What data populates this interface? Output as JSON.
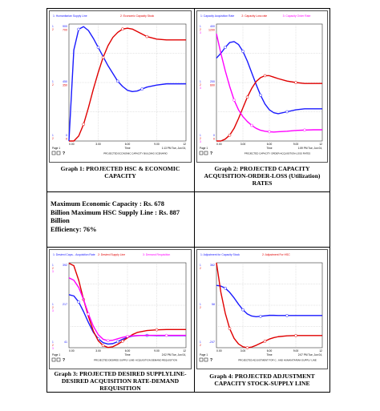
{
  "charts": [
    {
      "id": "g1",
      "caption": "Graph 1: PROJECTED HSC & ECONOMIC CAPACITY",
      "legend": [
        {
          "num": "1",
          "label": "1: Humanitarian Supply Line",
          "color": "#1a1aff"
        },
        {
          "num": "2",
          "label": "2: Economic Capacity Stock",
          "color": "#e00000"
        }
      ],
      "axis_left": [
        {
          "l1": "900",
          "l2": "700",
          "pos": "top"
        },
        {
          "l1": "450",
          "l2": "350",
          "pos": "mid"
        },
        {
          "l1": "0",
          "l2": "0",
          "pos": "bot"
        }
      ],
      "xticks": [
        "0.00",
        "3.00",
        "6.00",
        "9.00",
        "12"
      ],
      "footer": {
        "page": "Page 1",
        "time": "Time",
        "clock": "1:13 PM  Tue, Jun 04,",
        "scenario": "PROJECTED ECONOMIC CAPACITY BUILDING SCENARIO"
      },
      "chart_data": {
        "type": "line",
        "xlim": [
          0,
          12
        ],
        "series": [
          {
            "name": "1: Humanitarian Supply Line",
            "color": "#1a1aff",
            "ylim": [
              0,
              900
            ],
            "x": [
              0,
              0.5,
              1,
              1.5,
              2,
              2.5,
              3,
              3.5,
              4,
              4.5,
              5,
              5.5,
              6,
              6.5,
              7,
              7.5,
              8,
              9,
              10,
              11,
              12
            ],
            "y": [
              0,
              700,
              860,
              880,
              850,
              790,
              720,
              650,
              580,
              520,
              460,
              420,
              390,
              380,
              385,
              400,
              415,
              430,
              440,
              440,
              440
            ]
          },
          {
            "name": "2: Economic Capacity Stock",
            "color": "#e00000",
            "ylim": [
              0,
              700
            ],
            "x": [
              0,
              0.5,
              1,
              1.5,
              2,
              2.5,
              3,
              3.5,
              4,
              4.5,
              5,
              5.5,
              6,
              6.5,
              7,
              7.5,
              8,
              9,
              10,
              11,
              12
            ],
            "y": [
              0,
              0,
              30,
              100,
              200,
              310,
              410,
              500,
              570,
              620,
              650,
              670,
              675,
              670,
              655,
              640,
              625,
              610,
              605,
              605,
              605
            ]
          }
        ]
      }
    },
    {
      "id": "g2",
      "caption": "Graph 2: PROJECTED CAPACITY ACQUISITION-ORDER-LOSS (Utilization) RATES",
      "legend": [
        {
          "num": "1",
          "label": "1: Capacity Acquisition Rate",
          "color": "#1a1aff"
        },
        {
          "num": "2",
          "label": "2: Capacity Loss rate",
          "color": "#e00000"
        },
        {
          "num": "3",
          "label": "3: Capacity Order Rate",
          "color": "#ff00ff"
        }
      ],
      "axis_left": [
        {
          "l1": "400",
          "l2": "1200",
          "pos": "top"
        },
        {
          "l1": "200",
          "l2": "600",
          "pos": "mid"
        },
        {
          "l1": "0",
          "l2": "0",
          "pos": "bot"
        }
      ],
      "xticks": [
        "0.00",
        "3.00",
        "6.00",
        "9.00",
        "12"
      ],
      "footer": {
        "page": "Page 1",
        "time": "Time",
        "clock": "1:59 PM  Tue, Jun 04,",
        "scenario": "PROJECTED CAPACITY ORDER-ACQUISITION-LOSS RATES"
      },
      "chart_data": {
        "type": "line",
        "xlim": [
          0,
          12
        ],
        "series": [
          {
            "name": "1: Capacity Acquisition Rate",
            "color": "#1a1aff",
            "ylim": [
              0,
              1200
            ],
            "x": [
              0,
              0.5,
              1,
              1.5,
              2,
              2.5,
              3,
              3.5,
              4,
              4.5,
              5,
              5.5,
              6,
              6.5,
              7,
              8,
              9,
              10,
              11,
              12
            ],
            "y": [
              850,
              900,
              960,
              1010,
              1020,
              990,
              920,
              820,
              700,
              580,
              470,
              380,
              320,
              290,
              280,
              300,
              320,
              330,
              330,
              330
            ]
          },
          {
            "name": "2: Capacity Loss rate",
            "color": "#e00000",
            "ylim": [
              0,
              1200
            ],
            "x": [
              0,
              0.5,
              1,
              1.5,
              2,
              2.5,
              3,
              3.5,
              4,
              4.5,
              5,
              5.5,
              6,
              6.5,
              7,
              8,
              9,
              10,
              11,
              12
            ],
            "y": [
              0,
              0,
              20,
              60,
              130,
              230,
              340,
              450,
              540,
              610,
              650,
              670,
              670,
              655,
              640,
              615,
              600,
              590,
              590,
              590
            ]
          },
          {
            "name": "3: Capacity Order Rate",
            "color": "#ff00ff",
            "ylim": [
              0,
              1200
            ],
            "x": [
              0,
              0.5,
              1,
              1.5,
              2,
              2.5,
              3,
              3.5,
              4,
              4.5,
              5,
              5.5,
              6,
              6.5,
              7,
              8,
              9,
              10,
              11,
              12
            ],
            "y": [
              1100,
              900,
              720,
              560,
              420,
              320,
              250,
              200,
              160,
              130,
              110,
              100,
              95,
              92,
              95,
              100,
              108,
              112,
              115,
              115
            ]
          }
        ]
      }
    },
    {
      "id": "g3",
      "caption": "Graph 3: PROJECTED DESIRED SUPPLYLINE-DESIRED ACQUISITION RATE-DEMAND REQUISITION",
      "legend": [
        {
          "num": "1",
          "label": "1: Desired Capa... Acquisition Rate",
          "color": "#1a1aff"
        },
        {
          "num": "2",
          "label": "2: Desired Supply Line",
          "color": "#e00000"
        },
        {
          "num": "3",
          "label": "3: Demand Requisition",
          "color": "#ff00ff"
        }
      ],
      "axis_left": [
        {
          "l1": "392",
          "l2": "",
          "pos": "top"
        },
        {
          "l1": "217",
          "l2": "",
          "pos": "mid"
        },
        {
          "l1": "41",
          "l2": "",
          "pos": "bot"
        }
      ],
      "xticks": [
        "0.00",
        "3.00",
        "6.00",
        "9.00",
        "12"
      ],
      "footer": {
        "page": "Page 1",
        "time": "Time",
        "clock": "2:02 PM  Tue, Jun 04,",
        "scenario": "PROJECTED DESIRED SUPPLY LINE- ACQUISITION-DEMAND REQUISITION"
      },
      "chart_data": {
        "type": "line",
        "xlim": [
          0,
          12
        ],
        "series": [
          {
            "name": "1: Desired Capa... Acquisition Rate",
            "color": "#1a1aff",
            "ylim": [
              41,
              392
            ],
            "x": [
              0,
              0.5,
              1,
              1.5,
              2,
              2.5,
              3,
              3.5,
              4,
              4.5,
              5,
              5.5,
              6,
              6.5,
              7,
              8,
              9,
              10,
              11,
              12
            ],
            "y": [
              260,
              255,
              230,
              190,
              145,
              105,
              78,
              62,
              56,
              58,
              66,
              76,
              84,
              89,
              91,
              92,
              91,
              91,
              91,
              91
            ]
          },
          {
            "name": "2: Desired Supply Line",
            "color": "#e00000",
            "ylim": [
              41,
              392
            ],
            "x": [
              0,
              0.5,
              1,
              1.5,
              2,
              2.5,
              3,
              3.5,
              4,
              4.5,
              5,
              5.5,
              6,
              6.5,
              7,
              8,
              9,
              10,
              11,
              12
            ],
            "y": [
              390,
              380,
              320,
              240,
              170,
              110,
              70,
              50,
              42,
              45,
              55,
              68,
              82,
              95,
              104,
              112,
              115,
              116,
              116,
              116
            ]
          },
          {
            "name": "3: Demand Requisition",
            "color": "#ff00ff",
            "ylim": [
              41,
              392
            ],
            "x": [
              0,
              0.5,
              1,
              1.5,
              2,
              2.5,
              3,
              3.5,
              4,
              4.5,
              5,
              5.5,
              6,
              6.5,
              7,
              8,
              9,
              10,
              11,
              12
            ],
            "y": [
              330,
              320,
              290,
              240,
              180,
              130,
              95,
              76,
              70,
              72,
              78,
              84,
              88,
              90,
              91,
              92,
              92,
              92,
              92,
              92
            ]
          }
        ]
      }
    },
    {
      "id": "g4",
      "caption": "Graph 4: PROJECTED ADJUSTMENT CAPACITY STOCK-SUPPLY LINE",
      "legend": [
        {
          "num": "1",
          "label": "1: Adjustment for Capacity Stock",
          "color": "#1a1aff"
        },
        {
          "num": "2",
          "label": "2: Adjustment For HSC",
          "color": "#e00000"
        }
      ],
      "axis_left": [
        {
          "l1": "362",
          "l2": "",
          "pos": "top"
        },
        {
          "l1": "58",
          "l2": "",
          "pos": "mid"
        },
        {
          "l1": "-247",
          "l2": "",
          "pos": "bot"
        }
      ],
      "xticks": [
        "0.00",
        "3.00",
        "6.00",
        "9.00",
        "12"
      ],
      "footer": {
        "page": "Page 1",
        "time": "Time",
        "clock": "2:07 PM  Tue, Jun 04,",
        "scenario": "PROJECTED ADJUSTMENT FOR C...AND HUMANITARIAN SUPPLY LINE"
      },
      "chart_data": {
        "type": "line",
        "xlim": [
          0,
          12
        ],
        "series": [
          {
            "name": "1: Adjustment for Capacity Stock",
            "color": "#1a1aff",
            "ylim": [
              -247,
              362
            ],
            "x": [
              0,
              0.5,
              1,
              1.5,
              2,
              2.5,
              3,
              3.5,
              4,
              4.5,
              5,
              5.5,
              6,
              6.5,
              7,
              8,
              9,
              10,
              11,
              12
            ],
            "y": [
              200,
              195,
              180,
              150,
              110,
              65,
              25,
              -5,
              -20,
              -25,
              -22,
              -18,
              -15,
              -15,
              -16,
              -16,
              -16,
              -16,
              -16,
              -16
            ]
          },
          {
            "name": "2: Adjustment For HSC",
            "color": "#e00000",
            "ylim": [
              -247,
              362
            ],
            "x": [
              0,
              0.5,
              1,
              1.5,
              2,
              2.5,
              3,
              3.5,
              4,
              4.5,
              5,
              5.5,
              6,
              6.5,
              7,
              8,
              9,
              10,
              11,
              12
            ],
            "y": [
              362,
              150,
              0,
              -110,
              -180,
              -220,
              -240,
              -247,
              -242,
              -230,
              -215,
              -200,
              -185,
              -175,
              -168,
              -162,
              -160,
              -160,
              -160,
              -160
            ]
          }
        ]
      }
    }
  ],
  "summary": {
    "line1": "Maximum Economic Capacity : Rs. 678",
    "line2": "Billion Maximum HSC Supply  Line : Rs. 887",
    "line3": "Billion",
    "line4": "Efficiency: 76%"
  }
}
